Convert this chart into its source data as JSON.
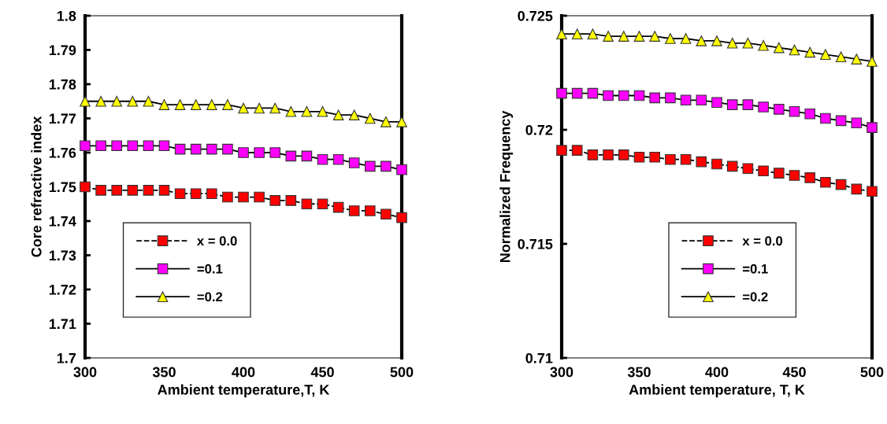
{
  "chart_data": [
    {
      "type": "line",
      "xlabel": "Ambient temperature,T, K",
      "ylabel": "Core refractive index",
      "x": [
        300,
        310,
        320,
        330,
        340,
        350,
        360,
        370,
        380,
        390,
        400,
        410,
        420,
        430,
        440,
        450,
        460,
        470,
        480,
        490,
        500
      ],
      "xlim": [
        300,
        500
      ],
      "xticks": [
        300,
        350,
        400,
        450,
        500
      ],
      "ylim": [
        1.7,
        1.8
      ],
      "yticks": [
        {
          "value": 1.7,
          "label": "1.7"
        },
        {
          "value": 1.71,
          "label": "1.71"
        },
        {
          "value": 1.72,
          "label": "1.72"
        },
        {
          "value": 1.73,
          "label": "1.73"
        },
        {
          "value": 1.74,
          "label": "1.74"
        },
        {
          "value": 1.75,
          "label": "1.75"
        },
        {
          "value": 1.76,
          "label": "1.76"
        },
        {
          "value": 1.77,
          "label": "1.77"
        },
        {
          "value": 1.78,
          "label": "1.78"
        },
        {
          "value": 1.79,
          "label": "1.79"
        },
        {
          "value": 1.8,
          "label": "1.8"
        }
      ],
      "grid": false,
      "legend": "bottom left",
      "series": [
        {
          "name": "x = 0.0",
          "color": "#ff0000",
          "marker": "square",
          "line_style": "dashed",
          "values": [
            1.75,
            1.749,
            1.749,
            1.749,
            1.749,
            1.749,
            1.748,
            1.748,
            1.748,
            1.747,
            1.747,
            1.747,
            1.746,
            1.746,
            1.745,
            1.745,
            1.744,
            1.743,
            1.743,
            1.742,
            1.741
          ]
        },
        {
          "name": "=0.1",
          "color": "#ff00ff",
          "marker": "square",
          "line_style": "solid",
          "values": [
            1.762,
            1.762,
            1.762,
            1.762,
            1.762,
            1.762,
            1.761,
            1.761,
            1.761,
            1.761,
            1.76,
            1.76,
            1.76,
            1.759,
            1.759,
            1.758,
            1.758,
            1.757,
            1.756,
            1.756,
            1.755
          ]
        },
        {
          "name": "=0.2",
          "color": "#ffff00",
          "marker": "triangle",
          "line_style": "solid",
          "values": [
            1.775,
            1.775,
            1.775,
            1.775,
            1.775,
            1.774,
            1.774,
            1.774,
            1.774,
            1.774,
            1.773,
            1.773,
            1.773,
            1.772,
            1.772,
            1.772,
            1.771,
            1.771,
            1.77,
            1.769,
            1.769
          ]
        }
      ]
    },
    {
      "type": "line",
      "xlabel": "Ambient temperature, T, K",
      "ylabel": "Normalized Frequency",
      "x": [
        300,
        310,
        320,
        330,
        340,
        350,
        360,
        370,
        380,
        390,
        400,
        410,
        420,
        430,
        440,
        450,
        460,
        470,
        480,
        490,
        500
      ],
      "xlim": [
        300,
        500
      ],
      "xticks": [
        300,
        350,
        400,
        450,
        500
      ],
      "ylim": [
        0.71,
        0.725
      ],
      "yticks": [
        {
          "value": 0.71,
          "label": "0.71"
        },
        {
          "value": 0.715,
          "label": "0.715"
        },
        {
          "value": 0.72,
          "label": "0.72"
        },
        {
          "value": 0.725,
          "label": "0.725"
        }
      ],
      "grid": false,
      "legend": "bottom",
      "series": [
        {
          "name": "x = 0.0",
          "color": "#ff0000",
          "marker": "square",
          "line_style": "dashed",
          "values": [
            0.7191,
            0.7191,
            0.7189,
            0.7189,
            0.7189,
            0.7188,
            0.7188,
            0.7187,
            0.7187,
            0.7186,
            0.7185,
            0.7184,
            0.7183,
            0.7182,
            0.7181,
            0.718,
            0.7179,
            0.7177,
            0.7176,
            0.7174,
            0.7173
          ]
        },
        {
          "name": "=0.1",
          "color": "#ff00ff",
          "marker": "square",
          "line_style": "solid",
          "values": [
            0.7216,
            0.7216,
            0.7216,
            0.7215,
            0.7215,
            0.7215,
            0.7214,
            0.7214,
            0.7213,
            0.7213,
            0.7212,
            0.7211,
            0.7211,
            0.721,
            0.7209,
            0.7208,
            0.7207,
            0.7205,
            0.7204,
            0.7203,
            0.7201
          ]
        },
        {
          "name": "=0.2",
          "color": "#ffff00",
          "marker": "triangle",
          "line_style": "solid",
          "values": [
            0.7242,
            0.7242,
            0.7242,
            0.7241,
            0.7241,
            0.7241,
            0.7241,
            0.724,
            0.724,
            0.7239,
            0.7239,
            0.7238,
            0.7238,
            0.7237,
            0.7236,
            0.7235,
            0.7234,
            0.7233,
            0.7232,
            0.7231,
            0.723
          ]
        }
      ]
    }
  ]
}
